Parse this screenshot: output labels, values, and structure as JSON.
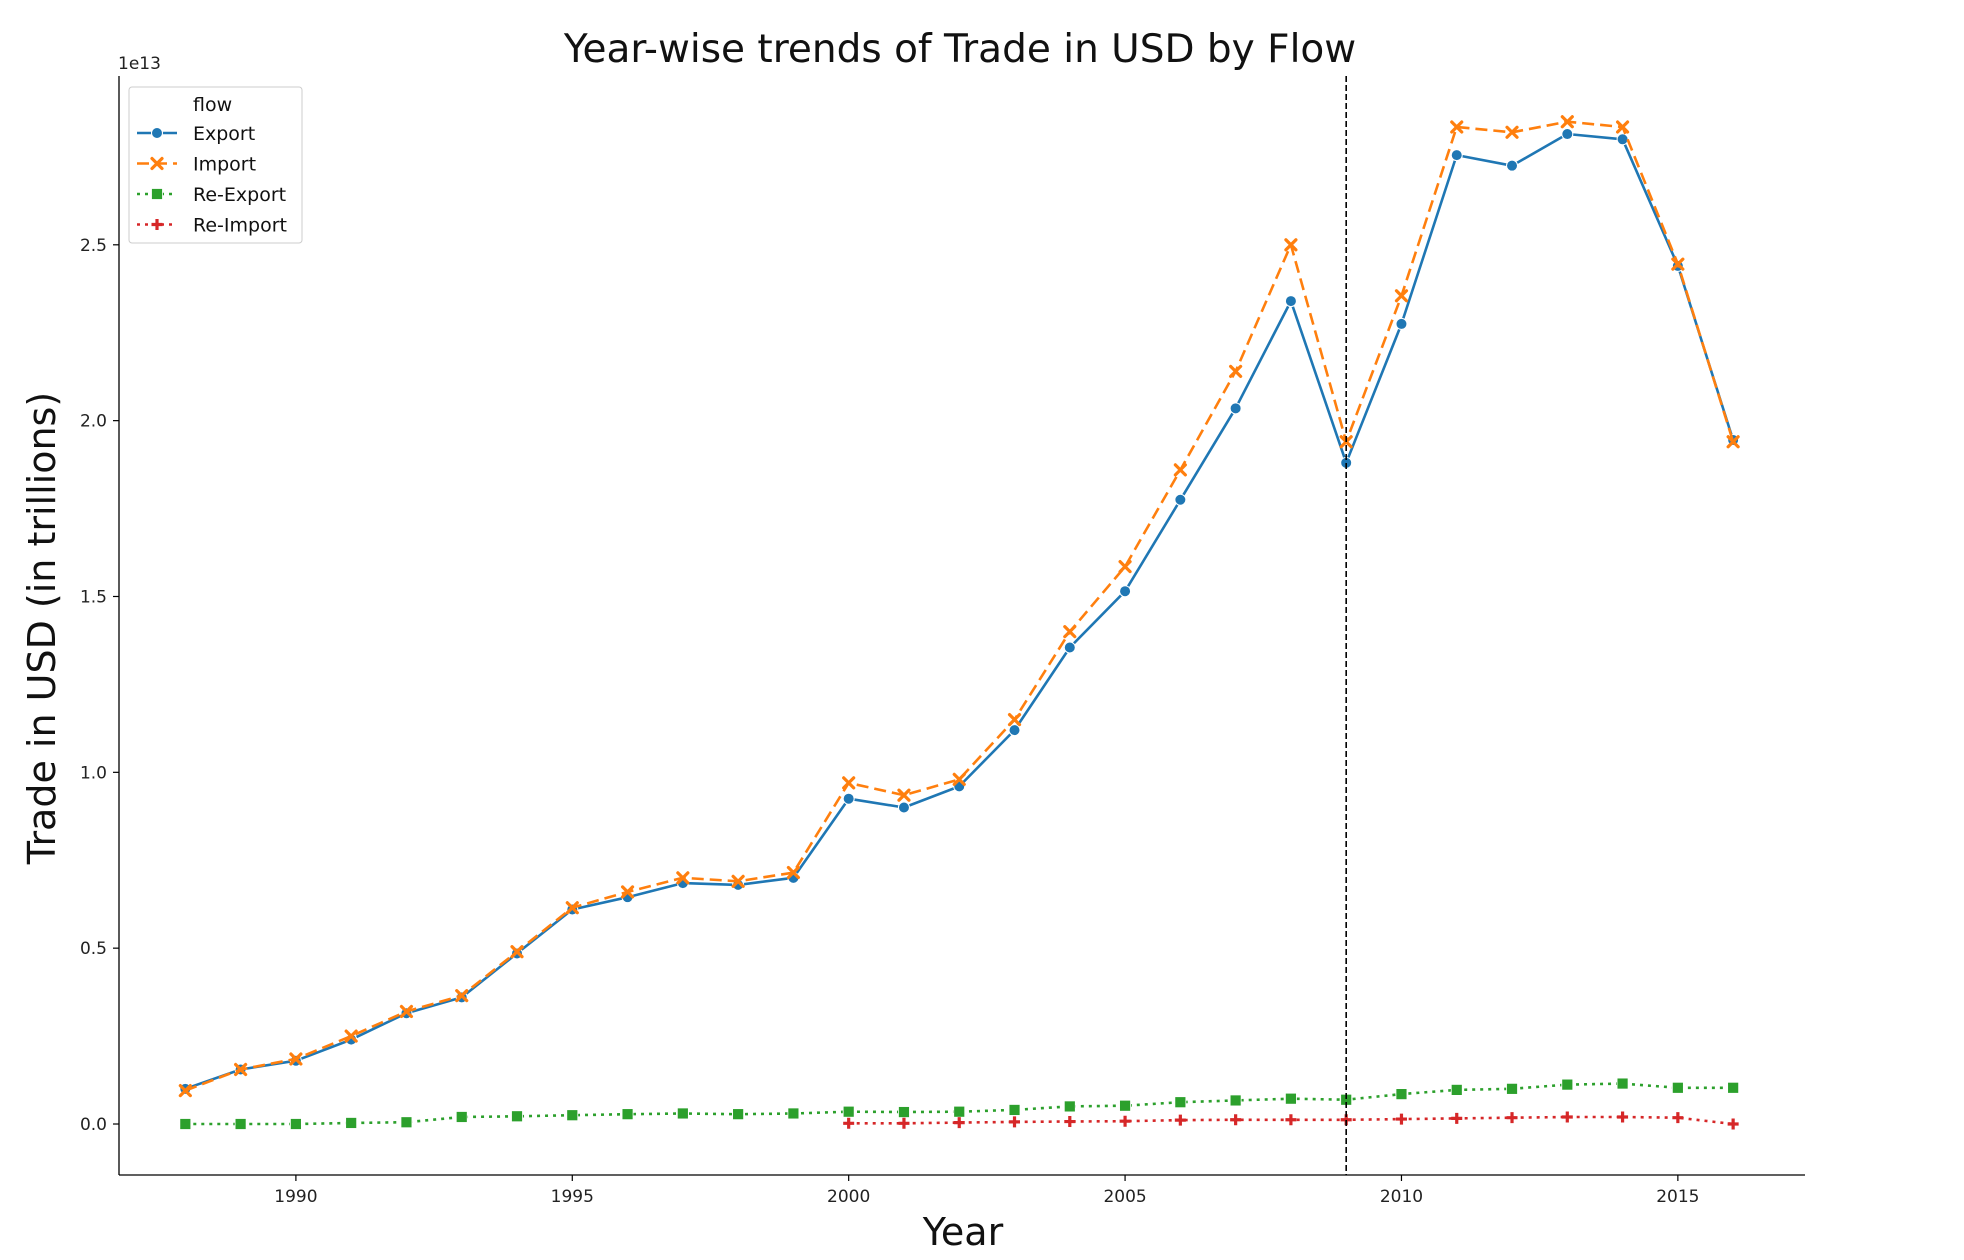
{
  "chart_data": {
    "type": "line",
    "title": "Year-wise trends of Trade in USD by Flow",
    "xlabel": "Year",
    "ylabel": "Trade in USD (in trillions)",
    "y_offset_label": "1e13",
    "xlim": [
      1986.8,
      2017.3
    ],
    "ylim": [
      -0.145,
      2.98
    ],
    "x_ticks": [
      1990,
      1995,
      2000,
      2005,
      2010,
      2015
    ],
    "y_ticks": [
      0.0,
      0.5,
      1.0,
      1.5,
      2.0,
      2.5
    ],
    "y_tick_labels": [
      "0.0",
      "0.5",
      "1.0",
      "1.5",
      "2.0",
      "2.5"
    ],
    "grid": false,
    "legend": {
      "title": "flow",
      "placement": "top-left"
    },
    "reference_line": {
      "x": 2009,
      "style": "dashed",
      "color": "#000000"
    },
    "series": [
      {
        "name": "Export",
        "color": "#1f77b4",
        "line_style": "solid",
        "marker": "circle",
        "x": [
          1988,
          1989,
          1990,
          1991,
          1992,
          1993,
          1994,
          1995,
          1996,
          1997,
          1998,
          1999,
          2000,
          2001,
          2002,
          2003,
          2004,
          2005,
          2006,
          2007,
          2008,
          2009,
          2010,
          2011,
          2012,
          2013,
          2014,
          2015,
          2016
        ],
        "values": [
          0.1,
          0.155,
          0.18,
          0.24,
          0.315,
          0.36,
          0.485,
          0.61,
          0.645,
          0.685,
          0.68,
          0.7,
          0.925,
          0.9,
          0.96,
          1.12,
          1.355,
          1.515,
          1.775,
          2.035,
          2.34,
          1.88,
          2.275,
          2.755,
          2.725,
          2.815,
          2.8,
          2.44,
          1.945
        ]
      },
      {
        "name": "Import",
        "color": "#ff7f0e",
        "line_style": "dashed",
        "marker": "x",
        "x": [
          1988,
          1989,
          1990,
          1991,
          1992,
          1993,
          1994,
          1995,
          1996,
          1997,
          1998,
          1999,
          2000,
          2001,
          2002,
          2003,
          2004,
          2005,
          2006,
          2007,
          2008,
          2009,
          2010,
          2011,
          2012,
          2013,
          2014,
          2015,
          2016
        ],
        "values": [
          0.095,
          0.155,
          0.185,
          0.25,
          0.32,
          0.365,
          0.49,
          0.615,
          0.66,
          0.7,
          0.69,
          0.715,
          0.97,
          0.935,
          0.98,
          1.15,
          1.4,
          1.585,
          1.86,
          2.14,
          2.5,
          1.94,
          2.355,
          2.835,
          2.82,
          2.85,
          2.835,
          2.445,
          1.94
        ]
      },
      {
        "name": "Re-Export",
        "color": "#2ca02c",
        "line_style": "dotted",
        "marker": "square",
        "x": [
          1988,
          1989,
          1990,
          1991,
          1992,
          1993,
          1994,
          1995,
          1996,
          1997,
          1998,
          1999,
          2000,
          2001,
          2002,
          2003,
          2004,
          2005,
          2006,
          2007,
          2008,
          2009,
          2010,
          2011,
          2012,
          2013,
          2014,
          2015,
          2016
        ],
        "values": [
          0.0,
          0.0,
          0.0,
          0.003,
          0.005,
          0.02,
          0.022,
          0.025,
          0.028,
          0.03,
          0.028,
          0.03,
          0.035,
          0.034,
          0.035,
          0.04,
          0.05,
          0.052,
          0.062,
          0.067,
          0.072,
          0.069,
          0.085,
          0.097,
          0.1,
          0.112,
          0.115,
          0.103,
          0.103
        ]
      },
      {
        "name": "Re-Import",
        "color": "#d62728",
        "line_style": "dotted",
        "marker": "plus",
        "x": [
          2000,
          2001,
          2002,
          2003,
          2004,
          2005,
          2006,
          2007,
          2008,
          2009,
          2010,
          2011,
          2012,
          2013,
          2014,
          2015,
          2016
        ],
        "values": [
          0.002,
          0.002,
          0.004,
          0.006,
          0.007,
          0.008,
          0.011,
          0.012,
          0.012,
          0.012,
          0.014,
          0.016,
          0.018,
          0.02,
          0.02,
          0.018,
          0.0
        ]
      }
    ]
  }
}
